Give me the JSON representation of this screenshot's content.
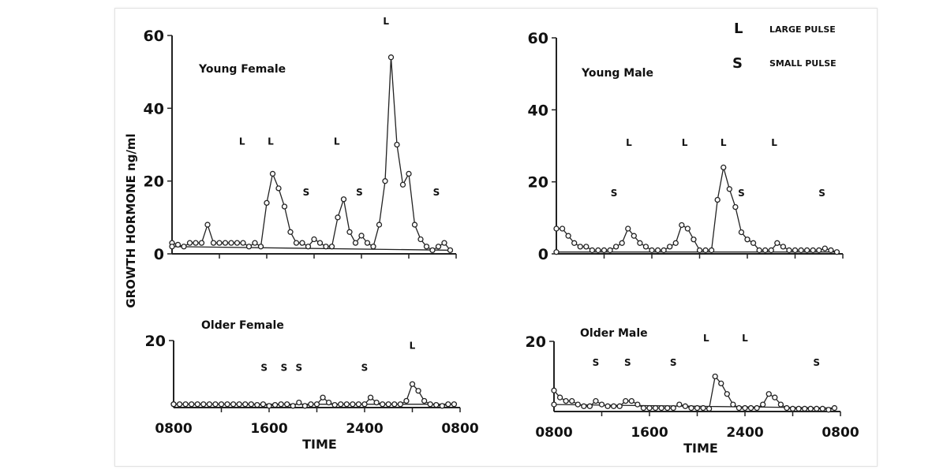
{
  "chart_data": [
    {
      "type": "line",
      "title": "Young Female",
      "ylim": [
        0,
        60
      ],
      "yticks": [
        "0",
        "20",
        "40",
        "60"
      ],
      "xticks": [],
      "x": [
        "0800",
        "0830",
        "0900",
        "0930",
        "1000",
        "1030",
        "1100",
        "1130",
        "1200",
        "1230",
        "1300",
        "1330",
        "1400",
        "1430",
        "1500",
        "1530",
        "1600",
        "1630",
        "1700",
        "1730",
        "1800",
        "1830",
        "1900",
        "1930",
        "2000",
        "2030",
        "2100",
        "2130",
        "2200",
        "2230",
        "2300",
        "2330",
        "2400",
        "0030",
        "0100",
        "0130",
        "0200",
        "0230",
        "0300",
        "0330",
        "0400",
        "0430",
        "0500",
        "0530",
        "0600",
        "0630",
        "0700",
        "0730",
        "0800"
      ],
      "values": [
        3,
        2.5,
        2,
        3,
        3,
        3,
        8,
        3,
        3,
        3,
        3,
        3,
        3,
        2,
        3,
        2,
        14,
        22,
        18,
        13,
        6,
        3,
        3,
        2,
        4,
        3,
        2,
        2,
        10,
        15,
        6,
        3,
        5,
        3,
        2,
        8,
        20,
        54,
        30,
        19,
        22,
        8,
        4,
        2,
        1,
        2,
        3,
        1,
        2
      ],
      "annotations": [
        {
          "text": "L",
          "time": "1355",
          "y": 30
        },
        {
          "text": "L",
          "time": "1620",
          "y": 30
        },
        {
          "text": "S",
          "time": "1920",
          "y": 16
        },
        {
          "text": "L",
          "time": "2155",
          "y": 30
        },
        {
          "text": "S",
          "time": "2350",
          "y": 16
        },
        {
          "text": "L",
          "time": "0205",
          "y": 63
        },
        {
          "text": "S",
          "time": "0620",
          "y": 16
        }
      ]
    },
    {
      "type": "line",
      "title": "Young Male",
      "ylim": [
        0,
        60
      ],
      "yticks": [
        "0",
        "20",
        "40",
        "60"
      ],
      "xticks": [],
      "x": [
        "0800",
        "0830",
        "0900",
        "0930",
        "1000",
        "1030",
        "1100",
        "1130",
        "1200",
        "1230",
        "1300",
        "1330",
        "1400",
        "1430",
        "1500",
        "1530",
        "1600",
        "1630",
        "1700",
        "1730",
        "1800",
        "1830",
        "1900",
        "1930",
        "2000",
        "2030",
        "2100",
        "2130",
        "2200",
        "2230",
        "2300",
        "2330",
        "2400",
        "0030",
        "0100",
        "0130",
        "0200",
        "0230",
        "0300",
        "0330",
        "0400",
        "0430",
        "0500",
        "0530",
        "0600",
        "0630",
        "0700",
        "0730",
        "0800"
      ],
      "values": [
        7,
        7,
        5,
        3,
        2,
        2,
        1,
        1,
        1,
        1,
        2,
        3,
        7,
        5,
        3,
        2,
        1,
        1,
        1,
        2,
        3,
        8,
        7,
        4,
        1,
        1,
        1,
        15,
        24,
        18,
        13,
        6,
        4,
        3,
        1,
        1,
        1,
        3,
        2,
        1,
        1,
        1,
        1,
        1,
        1,
        1.5,
        1,
        0.5,
        0.5
      ],
      "annotations": [
        {
          "text": "S",
          "time": "1250",
          "y": 16
        },
        {
          "text": "L",
          "time": "1405",
          "y": 30
        },
        {
          "text": "L",
          "time": "1845",
          "y": 30
        },
        {
          "text": "L",
          "time": "2200",
          "y": 30
        },
        {
          "text": "S",
          "time": "2330",
          "y": 16
        },
        {
          "text": "L",
          "time": "0215",
          "y": 30
        },
        {
          "text": "S",
          "time": "0615",
          "y": 16
        }
      ]
    },
    {
      "type": "line",
      "title": "Older Female",
      "ylim": [
        0,
        20
      ],
      "yticks": [
        "20"
      ],
      "xticks": [
        "0800",
        "1600",
        "2400",
        "0800"
      ],
      "xlabel": "TIME",
      "x": [
        "0800",
        "0830",
        "0900",
        "0930",
        "1000",
        "1030",
        "1100",
        "1130",
        "1200",
        "1230",
        "1300",
        "1330",
        "1400",
        "1430",
        "1500",
        "1530",
        "1600",
        "1630",
        "1700",
        "1730",
        "1800",
        "1830",
        "1900",
        "1930",
        "2000",
        "2030",
        "2100",
        "2130",
        "2200",
        "2230",
        "2300",
        "2330",
        "2400",
        "0030",
        "0100",
        "0130",
        "0200",
        "0230",
        "0300",
        "0330",
        "0400",
        "0430",
        "0500",
        "0530",
        "0600",
        "0630",
        "0700",
        "0730",
        "0800"
      ],
      "values": [
        1,
        1,
        1,
        1,
        1,
        1,
        1,
        1,
        1,
        1,
        1,
        1,
        1,
        1,
        0.8,
        1,
        0.5,
        0.8,
        1,
        1,
        0.5,
        1.5,
        0.5,
        1,
        1,
        3,
        1.5,
        0.8,
        1,
        1,
        1,
        1,
        1,
        3,
        1.5,
        1,
        1,
        1,
        1,
        2,
        7,
        5,
        2,
        1,
        0.8,
        0.5,
        1,
        1,
        1
      ],
      "annotations": [
        {
          "text": "S",
          "time": "1535",
          "y": 11
        },
        {
          "text": "S",
          "time": "1715",
          "y": 11
        },
        {
          "text": "S",
          "time": "1830",
          "y": 11
        },
        {
          "text": "S",
          "time": "2400",
          "y": 11
        },
        {
          "text": "L",
          "time": "0400",
          "y": 17.5
        }
      ]
    },
    {
      "type": "line",
      "title": "Older Male",
      "ylim": [
        0,
        20
      ],
      "yticks": [
        "20"
      ],
      "xticks": [
        "0800",
        "1600",
        "2400",
        "0800"
      ],
      "xlabel": "TIME",
      "x": [
        "0800",
        "0830",
        "0900",
        "0930",
        "1000",
        "1030",
        "1100",
        "1130",
        "1200",
        "1230",
        "1300",
        "1330",
        "1400",
        "1430",
        "1500",
        "1530",
        "1600",
        "1630",
        "1700",
        "1730",
        "1800",
        "1830",
        "1900",
        "1930",
        "2000",
        "2030",
        "2100",
        "2130",
        "2200",
        "2230",
        "2300",
        "2330",
        "2400",
        "0030",
        "0100",
        "0130",
        "0200",
        "0230",
        "0300",
        "0330",
        "0400",
        "0430",
        "0500",
        "0530",
        "0600",
        "0630",
        "0700",
        "0730",
        "0800"
      ],
      "values": [
        6,
        4,
        3,
        3,
        2,
        1.5,
        1.5,
        3,
        2,
        1.5,
        1.5,
        1.5,
        3,
        3,
        2,
        1,
        1,
        1,
        1,
        1,
        1,
        2,
        1.5,
        1,
        1,
        1,
        0.8,
        10,
        8,
        5,
        2,
        1,
        1,
        1,
        1,
        2,
        5,
        4,
        2,
        1,
        0.8,
        0.8,
        0.8,
        0.8,
        0.8,
        0.8,
        0.5,
        1,
        2
      ],
      "annotations": [
        {
          "text": "S",
          "time": "1130",
          "y": 13
        },
        {
          "text": "S",
          "time": "1410",
          "y": 13
        },
        {
          "text": "S",
          "time": "1800",
          "y": 13
        },
        {
          "text": "L",
          "time": "2045",
          "y": 20
        },
        {
          "text": "L",
          "time": "2400",
          "y": 20
        },
        {
          "text": "S",
          "time": "0600",
          "y": 13
        }
      ]
    }
  ],
  "shared": {
    "ylabel": "GROWTH  HORMONE  ng/ml",
    "legend": [
      {
        "symbol": "L",
        "label": "LARGE PULSE"
      },
      {
        "symbol": "S",
        "label": "SMALL PULSE"
      }
    ],
    "legend_position": "top-right",
    "line_color": "#222222",
    "marker": "open-circle"
  }
}
